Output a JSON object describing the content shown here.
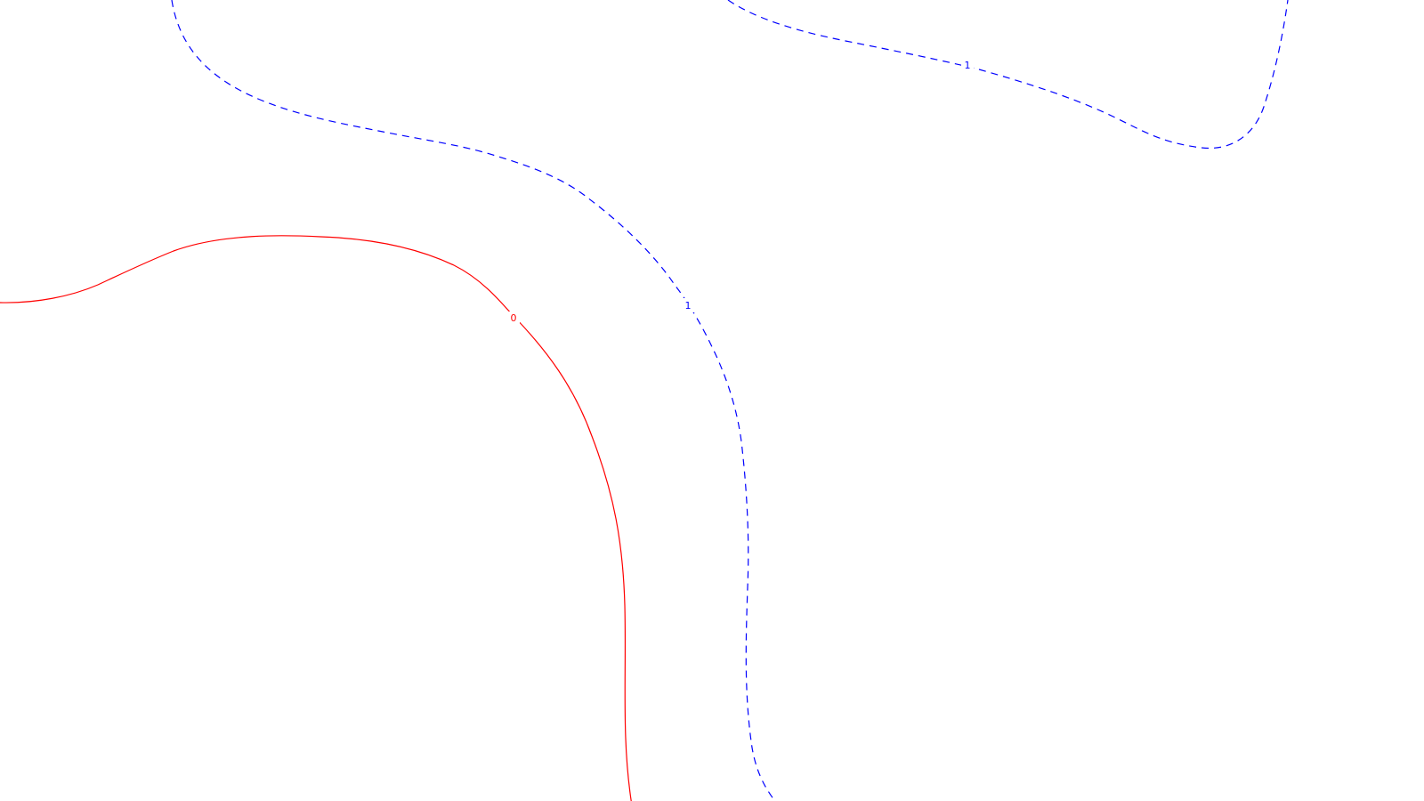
{
  "contours": {
    "zero_level": {
      "label": "0",
      "color": "#ff0000",
      "style": "solid"
    },
    "one_level": {
      "label": "1",
      "color": "#0000ff",
      "style": "dashed"
    }
  }
}
